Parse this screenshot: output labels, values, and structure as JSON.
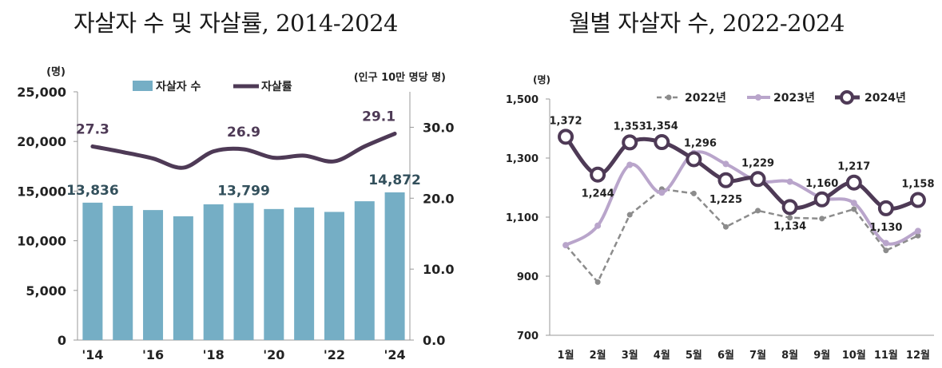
{
  "chart_data": [
    {
      "type": "bar",
      "title": "자살자 수 및 자살률, 2014-2024",
      "categories": [
        "2014",
        "2015",
        "2016",
        "2017",
        "2018",
        "2019",
        "2020",
        "2021",
        "2022",
        "2023",
        "2024"
      ],
      "tick_labels": [
        "'14",
        "'16",
        "'18",
        "'20",
        "'22",
        "'24"
      ],
      "tick_categories": [
        "2014",
        "2016",
        "2018",
        "2020",
        "2022",
        "2024"
      ],
      "ylabel_left": "(명)",
      "ylabel_right": "(인구 10만 명당 명)",
      "ylim_left": [
        0,
        25000
      ],
      "yticks_left": [
        "0",
        "5,000",
        "10,000",
        "15,000",
        "20,000",
        "25,000"
      ],
      "ylim_right": [
        0,
        35
      ],
      "yticks_right": [
        "0.0",
        "10.0",
        "20.0",
        "30.0"
      ],
      "grid": false,
      "legend_position": "top",
      "bar_series": {
        "name": "자살자 수",
        "color": "#75aec5",
        "values": [
          13836,
          13513,
          13092,
          12463,
          13670,
          13799,
          13195,
          13352,
          12906,
          13978,
          14872
        ],
        "labels": {
          "0": "13,836",
          "5": "13,799",
          "10": "14,872"
        }
      },
      "line_series": {
        "name": "자살률",
        "color": "#4e3a56",
        "values": [
          27.3,
          26.5,
          25.6,
          24.3,
          26.6,
          26.9,
          25.7,
          26.0,
          25.2,
          27.3,
          29.1
        ],
        "labels": {
          "0": "27.3",
          "5": "26.9",
          "10": "29.1"
        }
      }
    },
    {
      "type": "line",
      "title": "월별 자살자 수, 2022-2024",
      "categories": [
        "1월",
        "2월",
        "3월",
        "4월",
        "5월",
        "6월",
        "7월",
        "8월",
        "9월",
        "10월",
        "11월",
        "12월"
      ],
      "ylabel": "(명)",
      "ylim": [
        700,
        1500
      ],
      "yticks": [
        "700",
        "900",
        "1,100",
        "1,300",
        "1,500"
      ],
      "grid": false,
      "legend_position": "top",
      "series": [
        {
          "name": "2022년",
          "color": "#8c8c8c",
          "values": [
            1005,
            880,
            1108,
            1195,
            1180,
            1067,
            1122,
            1098,
            1095,
            1127,
            987,
            1037
          ]
        },
        {
          "name": "2023년",
          "color": "#b9a5cb",
          "values": [
            1005,
            1071,
            1277,
            1183,
            1317,
            1280,
            1222,
            1220,
            1165,
            1148,
            1012,
            1053
          ]
        },
        {
          "name": "2024년",
          "color": "#4e3a56",
          "values": [
            1372,
            1244,
            1353,
            1354,
            1296,
            1225,
            1229,
            1134,
            1160,
            1217,
            1130,
            1158
          ],
          "labels": [
            "1,372",
            "1,244",
            "1,353",
            "1,354",
            "1,296",
            "1,225",
            "1,229",
            "1,134",
            "1,160",
            "1,217",
            "1,130",
            "1,158"
          ]
        }
      ]
    }
  ]
}
